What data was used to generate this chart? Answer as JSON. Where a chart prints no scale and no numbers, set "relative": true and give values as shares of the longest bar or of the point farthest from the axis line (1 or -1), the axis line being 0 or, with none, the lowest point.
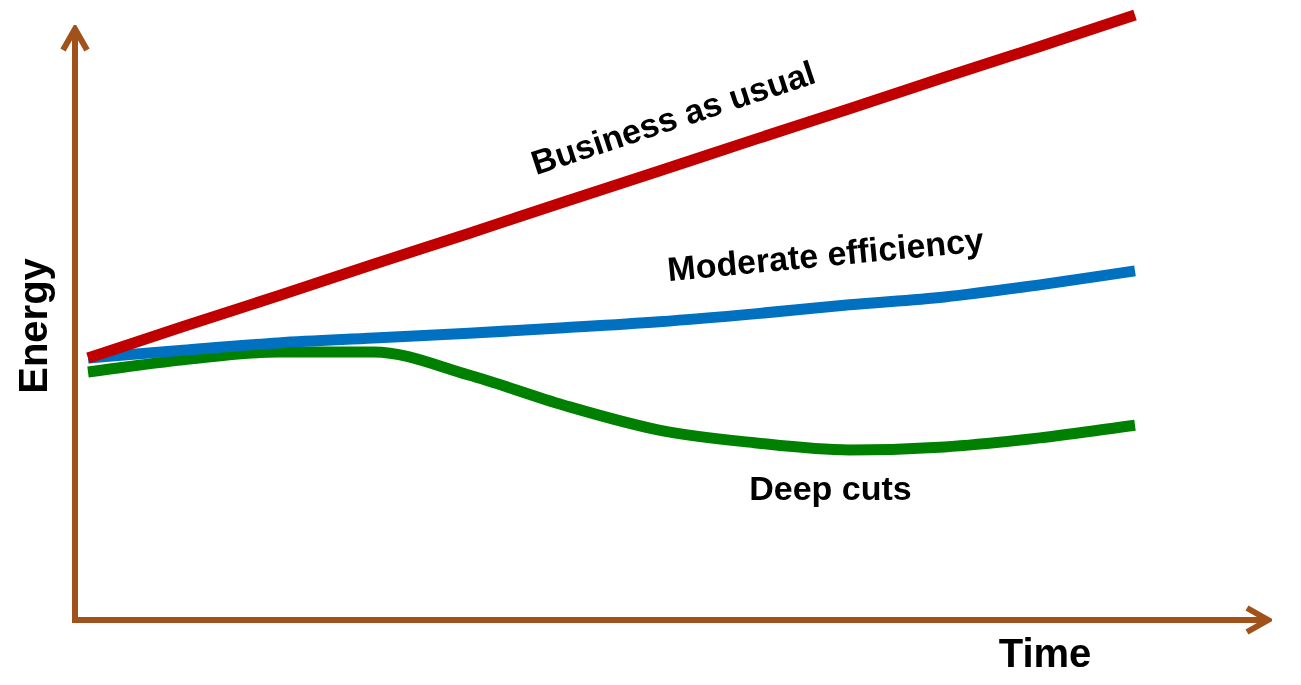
{
  "chart_data": {
    "type": "line",
    "relative": true,
    "xlabel": "Time",
    "ylabel": "Energy",
    "legend": false,
    "grid": false,
    "categories": [
      null,
      null,
      null,
      null,
      null,
      null,
      null,
      null,
      null,
      null,
      null,
      null
    ],
    "series": [
      {
        "name": "Business as usual",
        "color": "#c00000",
        "values": [
          0.433,
          0.485,
          0.536,
          0.588,
          0.639,
          0.691,
          0.742,
          0.794,
          0.845,
          0.897,
          0.948,
          1.0
        ]
      },
      {
        "name": "Moderate efficiency",
        "color": "#0070c0",
        "values": [
          0.433,
          0.446,
          0.458,
          0.466,
          0.474,
          0.483,
          0.493,
          0.506,
          0.521,
          0.534,
          0.554,
          0.577
        ]
      },
      {
        "name": "Deep cuts",
        "color": "#008000",
        "values": [
          0.41,
          0.43,
          0.443,
          0.443,
          0.405,
          0.355,
          0.314,
          0.293,
          0.281,
          0.286,
          0.301,
          0.322
        ]
      }
    ]
  }
}
